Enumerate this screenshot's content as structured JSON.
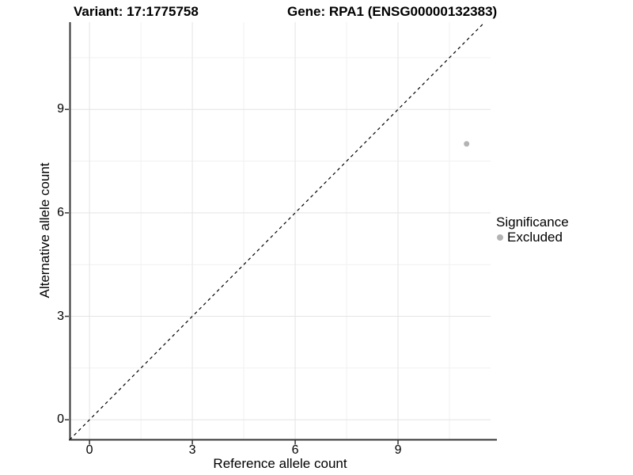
{
  "chart_data": {
    "type": "scatter",
    "titles": [
      "Variant: 17:1775758",
      "Gene: RPA1 (ENSG00000132383)"
    ],
    "xlabel": "Reference allele count",
    "ylabel": "Alternative allele count",
    "xlim": [
      -0.58,
      11.7
    ],
    "ylim": [
      -0.58,
      11.53
    ],
    "x_ticks": [
      0,
      3,
      6,
      9
    ],
    "y_ticks": [
      0,
      3,
      6,
      9
    ],
    "x_minor_breaks": [
      1.5,
      4.5,
      7.5,
      10.5
    ],
    "y_minor_breaks": [
      1.5,
      4.5,
      7.5,
      10.5
    ],
    "grid": "major and minor gridlines, white panel background",
    "reference_line": {
      "slope": 1,
      "intercept": 0,
      "style": "dashed",
      "color": "#000000"
    },
    "series": [
      {
        "name": "Excluded",
        "color": "#b3b3b3",
        "marker": "circle",
        "points": [
          {
            "x": 11,
            "y": 8
          }
        ]
      }
    ],
    "legend": {
      "title": "Significance",
      "position": "right",
      "items": [
        {
          "label": "Excluded",
          "color": "#b3b3b3",
          "marker": "circle"
        }
      ]
    }
  },
  "colors": {
    "background": "#ffffff",
    "grid_major": "#e4e4e4",
    "grid_minor": "#f1f1f1",
    "axis_line": "#333333",
    "tick_mark": "#333333",
    "text": "#000000",
    "point": "#b3b3b3"
  }
}
